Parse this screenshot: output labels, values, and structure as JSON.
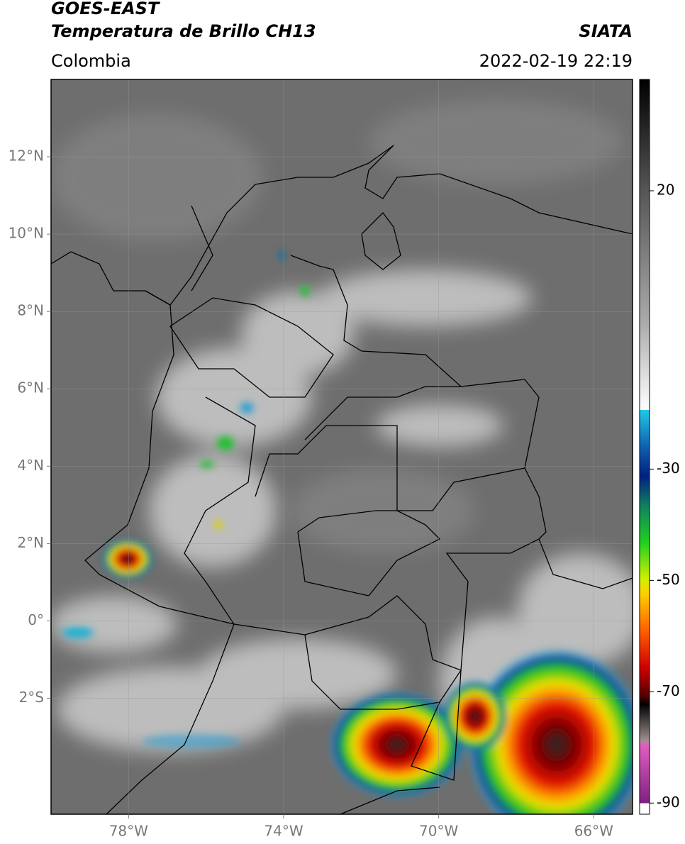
{
  "header": {
    "satellite": "GOES-EAST",
    "product": "Temperatura de Brillo CH13",
    "source": "SIATA",
    "region": "Colombia",
    "timestamp": "2022-02-19 22:19"
  },
  "map": {
    "xlim": [
      -80,
      -65
    ],
    "ylim": [
      -5,
      14
    ],
    "xticks": [
      {
        "value": -78,
        "label": "78°W"
      },
      {
        "value": -74,
        "label": "74°W"
      },
      {
        "value": -70,
        "label": "70°W"
      },
      {
        "value": -66,
        "label": "66°W"
      }
    ],
    "yticks": [
      {
        "value": 12,
        "label": "12°N"
      },
      {
        "value": 10,
        "label": "10°N"
      },
      {
        "value": 8,
        "label": "8°N"
      },
      {
        "value": 6,
        "label": "6°N"
      },
      {
        "value": 4,
        "label": "4°N"
      },
      {
        "value": 2,
        "label": "2°N"
      },
      {
        "value": 0,
        "label": "0°"
      },
      {
        "value": -2,
        "label": "2°S"
      }
    ],
    "grid": true
  },
  "colorbar": {
    "clim": [
      -92,
      40
    ],
    "ticks": [
      20,
      -30,
      -50,
      -70,
      -90
    ]
  }
}
